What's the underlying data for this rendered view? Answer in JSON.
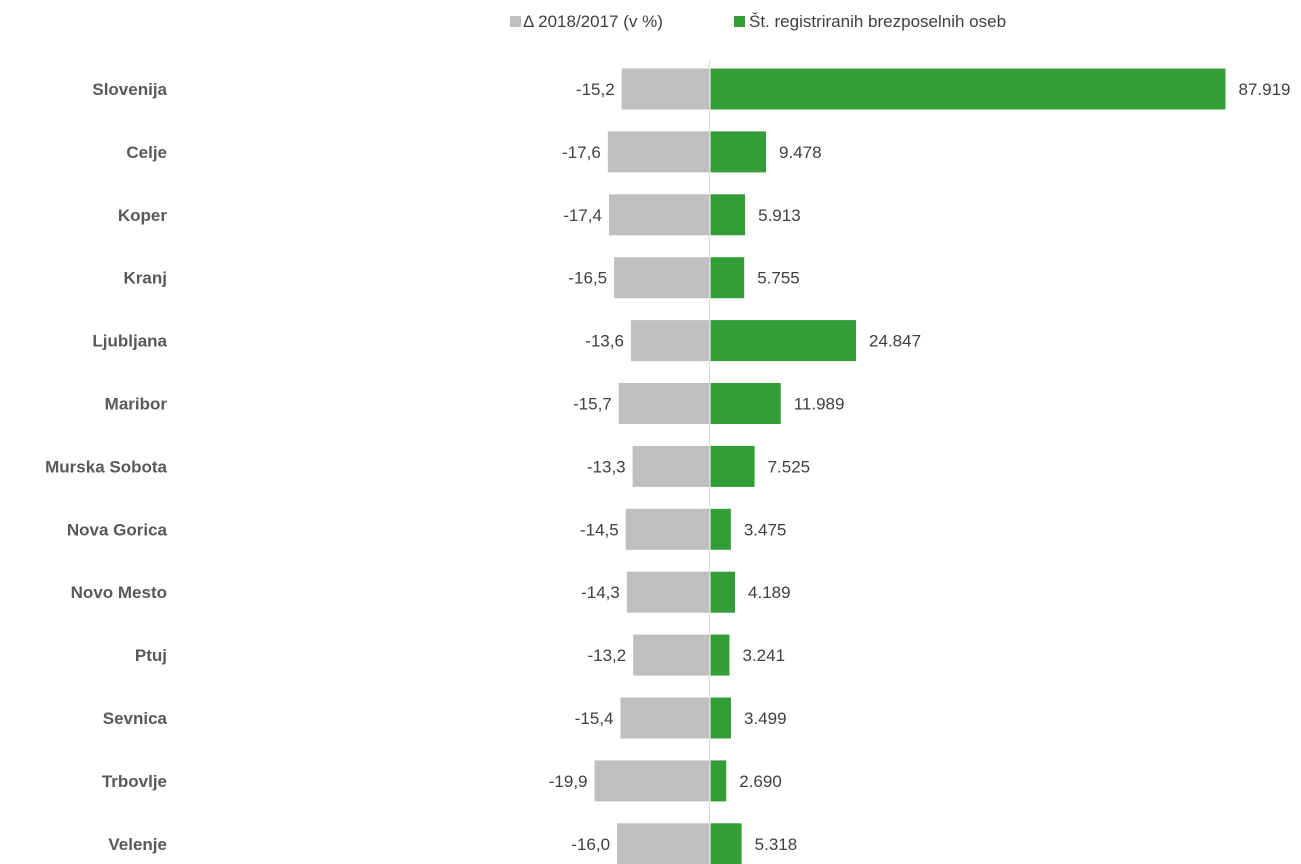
{
  "chart_data": {
    "type": "bar",
    "orientation": "horizontal",
    "categories": [
      "Slovenija",
      "Celje",
      "Koper",
      "Kranj",
      "Ljubljana",
      "Maribor",
      "Murska Sobota",
      "Nova Gorica",
      "Novo Mesto",
      "Ptuj",
      "Sevnica",
      "Trbovlje",
      "Velenje"
    ],
    "category_display": [
      "Slovenija",
      "Celje",
      "Koper",
      "Kranj",
      "Ljubljana",
      "Maribor",
      "Murska Sobota",
      "Nova Gorica",
      "Novo Mesto",
      "Ptuj",
      "Sevnica",
      "Trbovlje",
      "Velenje"
    ],
    "series": [
      {
        "name": "Δ 2018/2017 (v %)",
        "color": "#bfbfbf",
        "values": [
          -15.2,
          -17.6,
          -17.4,
          -16.5,
          -13.6,
          -15.7,
          -13.3,
          -14.5,
          -14.3,
          -13.2,
          -15.4,
          -19.9,
          -16.0
        ],
        "labels": [
          "-15,2",
          "-17,6",
          "-17,4",
          "-16,5",
          "-13,6",
          "-15,7",
          "-13,3",
          "-14,5",
          "-14,3",
          "-13,2",
          "-15,4",
          "-19,9",
          "-16,0"
        ]
      },
      {
        "name": "Št. registriranih brezposelnih oseb",
        "color": "#339e37",
        "values": [
          87919,
          9478,
          5913,
          5755,
          24847,
          11989,
          7525,
          3475,
          4189,
          3241,
          3499,
          2690,
          5318
        ],
        "labels": [
          "87.919",
          "9.478",
          "5.913",
          "5.755",
          "24.847",
          "11.989",
          "7.525",
          "3.475",
          "4.189",
          "3.241",
          "3.499",
          "2.690",
          "5.318"
        ]
      }
    ],
    "legend_position": "top",
    "grid": false,
    "axis_line_color": "#d9d9d9"
  }
}
